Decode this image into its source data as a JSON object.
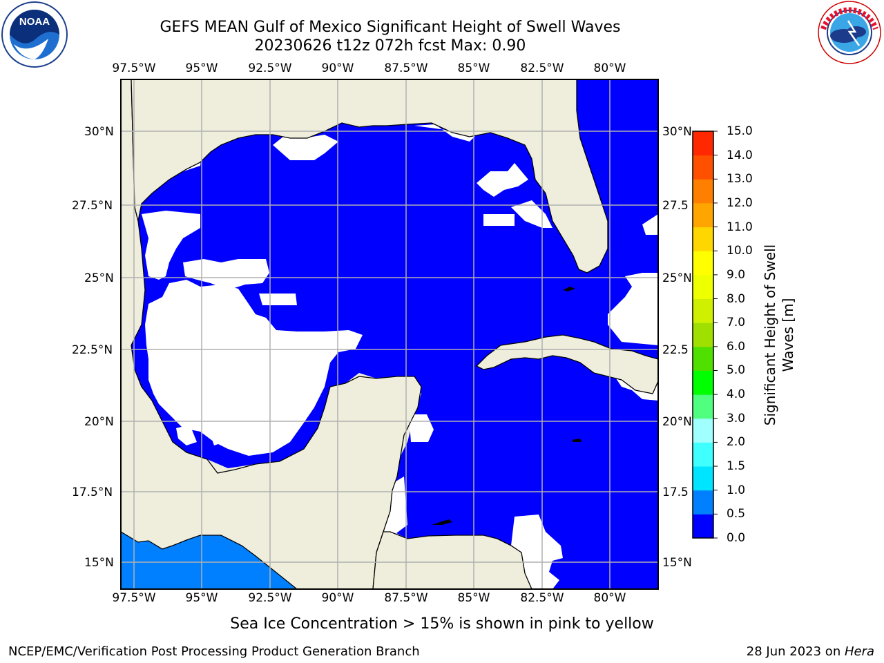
{
  "title": {
    "line1": "GEFS MEAN Gulf of Mexico Significant Height of Swell Waves",
    "line2": "20230626 t12z 072h fcst   Max: 0.90"
  },
  "map": {
    "lon_labels": [
      "97.5°W",
      "95°W",
      "92.5°W",
      "90°W",
      "87.5°W",
      "85°W",
      "82.5°W",
      "80°W"
    ],
    "lat_labels_left": [
      "30°N",
      "27.5°N",
      "25°N",
      "22.5°N",
      "20°N",
      "17.5°N",
      "15°N"
    ],
    "lat_labels_right": [
      "30°N",
      "27.5",
      "25°N",
      "22.5",
      "20°N",
      "17.5",
      "15°N"
    ],
    "colors": {
      "land": "#efeedd",
      "water_low": "#0000ff",
      "water_mid": "#0080ff",
      "no_data": "#ffffff",
      "grid": "#b0b0b0"
    }
  },
  "colorbar": {
    "title_line1": "Significant Height of Swell",
    "title_line2": "Waves [m]",
    "tick_labels": [
      "0.0",
      "0.5",
      "1.0",
      "1.5",
      "2.0",
      "3.0",
      "4.0",
      "5.0",
      "6.0",
      "7.0",
      "8.0",
      "9.0",
      "10.0",
      "11.0",
      "12.0",
      "13.0",
      "14.0",
      "15.0"
    ],
    "colors": [
      "#0000ff",
      "#0080ff",
      "#00e5ff",
      "#40ffff",
      "#a0ffff",
      "#50ff80",
      "#00ff00",
      "#50e000",
      "#a0e000",
      "#cff000",
      "#eeff00",
      "#ffff00",
      "#ffd700",
      "#ffa500",
      "#ff8000",
      "#ff5000",
      "#ff2800",
      "#ff0000"
    ]
  },
  "note": "Sea Ice Concentration > 15% is shown in pink to yellow",
  "footer": {
    "left": "NCEP/EMC/Verification Post Processing Product Generation Branch",
    "right_date": "28 Jun 2023 on ",
    "right_host": "Hera"
  },
  "logos": {
    "left": "NOAA",
    "right": "NATIONAL WEATHER SERVICE"
  }
}
